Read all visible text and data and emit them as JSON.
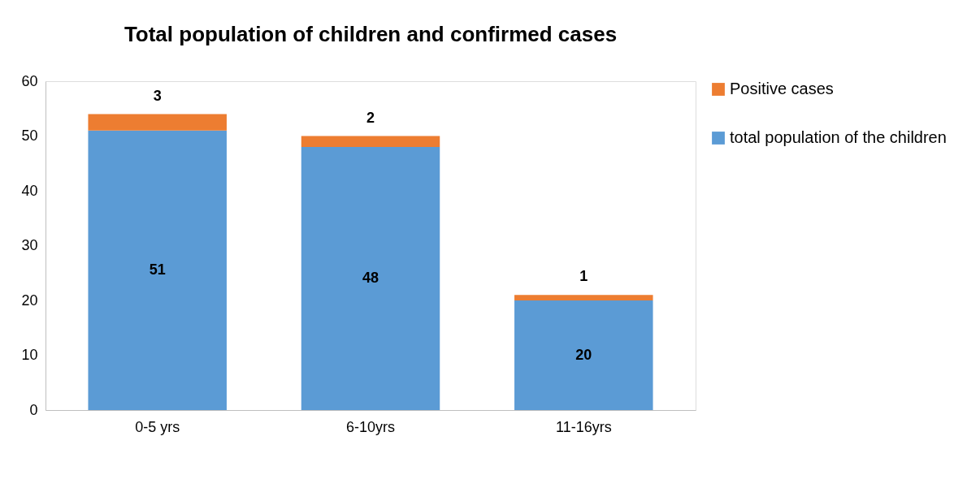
{
  "chart_data": {
    "type": "bar",
    "title": "Total population of children and confirmed cases",
    "categories": [
      "0-5 yrs",
      "6-10yrs",
      "11-16yrs"
    ],
    "series": [
      {
        "name": "total population of the children",
        "color": "#5b9bd5",
        "values": [
          51,
          48,
          20
        ]
      },
      {
        "name": "Positive cases",
        "color": "#ed7d31",
        "values": [
          3,
          2,
          1
        ]
      }
    ],
    "stacked": true,
    "ylim": [
      0,
      60
    ],
    "yticks": [
      0,
      10,
      20,
      30,
      40,
      50,
      60
    ],
    "grid": false,
    "legend": "right",
    "data_labels": true
  }
}
